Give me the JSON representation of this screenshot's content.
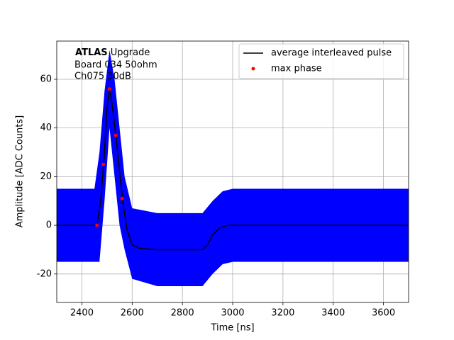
{
  "chart_data": {
    "type": "line",
    "xlabel": "Time [ns]",
    "ylabel": "Amplitude [ADC Counts]",
    "annotations": [
      "ATLAS",
      "Upgrade",
      "Board 034 50ohm",
      "Ch075 30dB"
    ],
    "xlim": [
      2300,
      3700
    ],
    "ylim": [
      -31.7,
      75.7
    ],
    "xticks": [
      2400,
      2600,
      2800,
      3000,
      3200,
      3400,
      3600
    ],
    "yticks": [
      -20,
      0,
      20,
      40,
      60
    ],
    "grid": true,
    "legend": "upper right",
    "band": {
      "color": "#0000ff",
      "x": [
        2300,
        2450,
        2470,
        2490,
        2510,
        2530,
        2550,
        2570,
        2600,
        2700,
        2880,
        2920,
        2960,
        3000,
        3700
      ],
      "high": [
        15,
        15,
        30,
        55,
        72,
        60,
        40,
        20,
        7,
        5,
        5,
        10,
        14,
        15,
        15
      ],
      "low": [
        -15,
        -15,
        -15,
        10,
        40,
        20,
        0,
        -10,
        -22,
        -25,
        -25,
        -20,
        -16,
        -15,
        -15
      ]
    },
    "series": [
      {
        "name": "average interleaved pulse",
        "color": "#000000",
        "style": "line",
        "x": [
          2300,
          2460,
          2475,
          2490,
          2500,
          2510,
          2520,
          2535,
          2550,
          2565,
          2580,
          2600,
          2630,
          2700,
          2880,
          2900,
          2920,
          2950,
          2980,
          3700
        ],
        "values": [
          0,
          0,
          10,
          30,
          48,
          56,
          50,
          37,
          22,
          8,
          -2,
          -8,
          -9.5,
          -10,
          -10,
          -8,
          -4,
          -1,
          0,
          0
        ]
      },
      {
        "name": "max phase",
        "color": "#ff0000",
        "style": "marker",
        "x": [
          2460,
          2485,
          2510,
          2535,
          2560
        ],
        "values": [
          0,
          25,
          56,
          37,
          11
        ]
      }
    ]
  }
}
